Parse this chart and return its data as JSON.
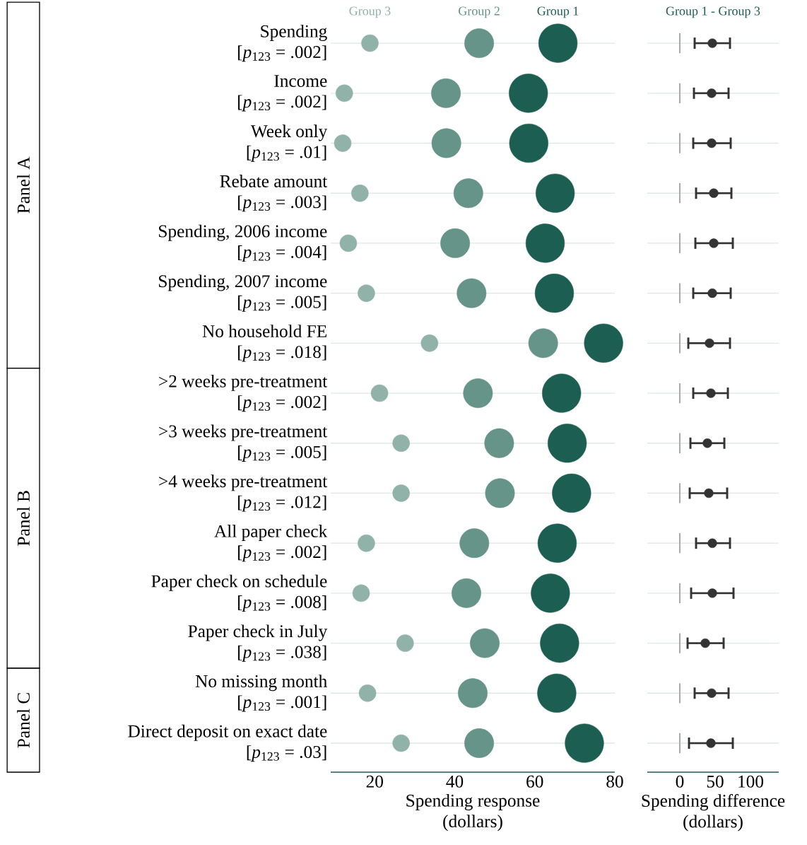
{
  "chart_data": [
    {
      "type": "scatter",
      "orientation": "horizontal",
      "categories": [
        "Spending\n[*p*$_{123}$ = .002]",
        "Income\n[*p*$_{123}$ = .002]",
        "Week only\n[*p*$_{123}$ = .01]",
        "Rebate amount\n[*p*$_{123}$ = .003]",
        "Spending, 2006 income\n[*p*$_{123}$ = .004]",
        "Spending, 2007 income\n[*p*$_{123}$ = .005]",
        "No household FE\n[*p*$_{123}$ = .018]",
        ">2 weeks pre-treatment\n[*p*$_{123}$ = .002]",
        ">3 weeks pre-treatment\n[*p*$_{123}$ = .005]",
        ">4 weeks pre-treatment\n[*p*$_{123}$ = .012]",
        "All paper check\n[*p*$_{123}$ = .002]",
        "Paper check on schedule\n[*p*$_{123}$ = .008]",
        "Paper check in July\n[*p*$_{123}$ = .038]",
        "No missing month\n[*p*$_{123}$ = .001]",
        "Direct deposit on exact date\n[*p*$_{123}$ = .03]"
      ],
      "series": [
        {
          "name": "Group 3",
          "color": "#90b2a8",
          "values": [
            18.8,
            12.4,
            12.0,
            16.3,
            13.4,
            17.9,
            33.7,
            21.2,
            26.6,
            26.6,
            17.9,
            16.6,
            27.6,
            18.2,
            26.6
          ]
        },
        {
          "name": "Group 2",
          "color": "#669488",
          "values": [
            46.1,
            37.8,
            37.9,
            43.4,
            40.1,
            44.2,
            62.1,
            45.8,
            51.1,
            51.3,
            44.9,
            42.9,
            47.5,
            44.5,
            46.1
          ]
        },
        {
          "name": "Group 1",
          "color": "#1d5e52",
          "values": [
            65.8,
            58.4,
            58.5,
            65.1,
            62.6,
            64.9,
            77.2,
            66.7,
            68.1,
            69.2,
            65.6,
            63.9,
            66.2,
            65.5,
            72.4
          ]
        }
      ],
      "xlim": [
        9,
        80
      ],
      "xticks": [
        20,
        40,
        60,
        80
      ],
      "xlabel": "Spending response\n(dollars)",
      "grid": "y",
      "marker": "circle",
      "annotations": [
        "Panel A",
        "Panel B",
        "Panel C"
      ]
    },
    {
      "type": "scatter",
      "orientation": "horizontal",
      "title": "Group 1 - Group 3",
      "categories": [
        null,
        null,
        null,
        null,
        null,
        null,
        null,
        null,
        null,
        null,
        null,
        null,
        null,
        null,
        null
      ],
      "tick_labels": "x",
      "color": "#333333",
      "values": [
        46,
        45,
        45,
        48,
        48,
        46,
        42,
        44,
        39,
        41,
        46,
        46,
        36,
        45,
        44
      ],
      "errors": [
        [
          21,
          71
        ],
        [
          20,
          69
        ],
        [
          19,
          72
        ],
        [
          23,
          73
        ],
        [
          22,
          75
        ],
        [
          19,
          72
        ],
        [
          12,
          71
        ],
        [
          19,
          68
        ],
        [
          15,
          63
        ],
        [
          14,
          67
        ],
        [
          23,
          71
        ],
        [
          16,
          76
        ],
        [
          11,
          62
        ],
        [
          21,
          69
        ],
        [
          13,
          75
        ]
      ],
      "xlim": [
        -46,
        140
      ],
      "xticks": [
        0,
        50,
        100
      ],
      "xlabel": "Spending difference\n(dollars)",
      "grid": "y",
      "marker": "circle",
      "ref_lines": [
        {
          "axis": "x",
          "value": 0,
          "color": "#aaaaaa"
        }
      ]
    }
  ]
}
